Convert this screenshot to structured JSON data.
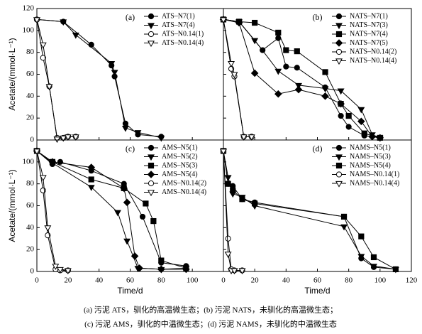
{
  "chart_data": [
    {
      "type": "line",
      "title": "(a)",
      "ylabel": "Acetate/(mmol·L⁻¹)",
      "xlim": [
        0,
        120
      ],
      "ylim": [
        0,
        120
      ],
      "yticks": [
        0,
        20,
        40,
        60,
        80,
        100,
        120
      ],
      "series": [
        {
          "name": "ATS–N7(1)",
          "marker": "circle",
          "color": "#000000",
          "x": [
            0,
            17,
            35,
            48,
            50,
            57,
            65,
            80
          ],
          "values": [
            110,
            108,
            87,
            68,
            58,
            15,
            5,
            3
          ]
        },
        {
          "name": "ATS–N7(4)",
          "marker": "triangle-down",
          "color": "#000000",
          "x": [
            0,
            17,
            25,
            48,
            50,
            57,
            65,
            80
          ],
          "values": [
            110,
            108,
            96,
            70,
            62,
            11,
            7,
            2
          ]
        },
        {
          "name": "ATS–N0.14(1)",
          "marker": "open-circle",
          "color": "#000000",
          "x": [
            0,
            4,
            8,
            13,
            17,
            20,
            25
          ],
          "values": [
            110,
            75,
            49,
            2,
            2,
            3,
            3
          ]
        },
        {
          "name": "ATS–N0.14(4)",
          "marker": "open-triangle-down",
          "color": "#000000",
          "x": [
            0,
            4,
            8,
            13,
            17,
            20,
            25
          ],
          "values": [
            110,
            87,
            49,
            1,
            2,
            3,
            3
          ]
        }
      ]
    },
    {
      "type": "line",
      "title": "(b)",
      "xlim": [
        0,
        120
      ],
      "ylim": [
        0,
        120
      ],
      "series": [
        {
          "name": "NATS–N7(1)",
          "marker": "circle",
          "color": "#000000",
          "x": [
            0,
            10,
            25,
            35,
            40,
            47,
            65,
            75,
            80,
            90,
            100
          ],
          "values": [
            110,
            108,
            82,
            93,
            67,
            66,
            48,
            22,
            12,
            4,
            2
          ]
        },
        {
          "name": "NATS–N7(3)",
          "marker": "triangle-down",
          "color": "#000000",
          "x": [
            0,
            10,
            20,
            35,
            48,
            65,
            75,
            88,
            95,
            100
          ],
          "values": [
            110,
            108,
            91,
            63,
            50,
            47,
            45,
            28,
            5,
            2
          ]
        },
        {
          "name": "NATS–N7(4)",
          "marker": "square",
          "color": "#000000",
          "x": [
            0,
            10,
            20,
            35,
            40,
            47,
            65,
            75,
            80,
            90,
            100
          ],
          "values": [
            110,
            108,
            107,
            98,
            82,
            81,
            62,
            33,
            22,
            6,
            2
          ]
        },
        {
          "name": "NATS–N7(5)",
          "marker": "diamond",
          "color": "#000000",
          "x": [
            0,
            10,
            20,
            35,
            48,
            65,
            75,
            88,
            95,
            100
          ],
          "values": [
            110,
            107,
            61,
            42,
            46,
            40,
            33,
            17,
            3,
            2
          ]
        },
        {
          "name": "NATS–N0.14(2)",
          "marker": "open-circle",
          "color": "#000000",
          "x": [
            0,
            5,
            7,
            13,
            18
          ],
          "values": [
            110,
            65,
            58,
            3,
            3
          ]
        },
        {
          "name": "NATS–N0.14(4)",
          "marker": "open-triangle-down",
          "color": "#000000",
          "x": [
            0,
            5,
            7,
            13,
            18
          ],
          "values": [
            110,
            70,
            60,
            3,
            3
          ]
        }
      ]
    },
    {
      "type": "line",
      "title": "(c)",
      "ylabel": "Acetate/(mmol·L⁻¹)",
      "xlabel": "Time/d",
      "xlim": [
        0,
        120
      ],
      "ylim": [
        0,
        120
      ],
      "yticks": [
        0,
        20,
        40,
        60,
        80,
        100
      ],
      "xticks": [
        0,
        20,
        40,
        60,
        80,
        100
      ],
      "series": [
        {
          "name": "AMS–N5(1)",
          "marker": "circle",
          "color": "#000000",
          "x": [
            0,
            10,
            15,
            35,
            56,
            68,
            80,
            96
          ],
          "values": [
            110,
            98,
            100,
            92,
            80,
            50,
            8,
            5
          ]
        },
        {
          "name": "AMS–N5(2)",
          "marker": "triangle-down",
          "color": "#000000",
          "x": [
            0,
            10,
            35,
            52,
            58,
            65,
            80,
            96
          ],
          "values": [
            110,
            99,
            77,
            54,
            28,
            3,
            2,
            3
          ]
        },
        {
          "name": "AMS–N5(3)",
          "marker": "square",
          "color": "#000000",
          "x": [
            0,
            10,
            35,
            56,
            70,
            75,
            80,
            96
          ],
          "values": [
            110,
            100,
            84,
            76,
            62,
            46,
            10,
            3
          ]
        },
        {
          "name": "AMS–N5(4)",
          "marker": "diamond",
          "color": "#000000",
          "x": [
            0,
            10,
            35,
            56,
            58,
            63,
            66,
            80,
            96
          ],
          "values": [
            110,
            100,
            95,
            76,
            63,
            14,
            3,
            2,
            2
          ]
        },
        {
          "name": "AMS–N0.14(2)",
          "marker": "open-circle",
          "color": "#000000",
          "x": [
            0,
            4,
            7,
            12,
            15,
            20
          ],
          "values": [
            110,
            74,
            33,
            2,
            1,
            1
          ]
        },
        {
          "name": "AMS–N0.14(4)",
          "marker": "open-triangle-down",
          "color": "#000000",
          "x": [
            0,
            4,
            7,
            12,
            15,
            20
          ],
          "values": [
            110,
            86,
            40,
            5,
            2,
            1
          ]
        }
      ]
    },
    {
      "type": "line",
      "title": "(d)",
      "xlabel": "Time/d",
      "xlim": [
        0,
        120
      ],
      "ylim": [
        0,
        120
      ],
      "xticks": [
        0,
        20,
        40,
        60,
        80,
        100,
        120
      ],
      "series": [
        {
          "name": "NAMS–N5(1)",
          "marker": "circle",
          "color": "#000000",
          "x": [
            0,
            3,
            6,
            12,
            20,
            77,
            88,
            96,
            110
          ],
          "values": [
            110,
            80,
            78,
            66,
            63,
            50,
            12,
            4,
            2
          ]
        },
        {
          "name": "NAMS–N5(3)",
          "marker": "triangle-down",
          "color": "#000000",
          "x": [
            0,
            3,
            6,
            12,
            20,
            77,
            88,
            96,
            110
          ],
          "values": [
            110,
            86,
            71,
            68,
            60,
            41,
            14,
            5,
            2
          ]
        },
        {
          "name": "NAMS–N5(4)",
          "marker": "square",
          "color": "#000000",
          "x": [
            0,
            3,
            6,
            12,
            20,
            77,
            88,
            96,
            110
          ],
          "values": [
            110,
            80,
            74,
            66,
            62,
            50,
            32,
            13,
            2
          ]
        },
        {
          "name": "NAMS–N0.14(1)",
          "marker": "open-circle",
          "color": "#000000",
          "x": [
            0,
            3,
            5,
            7,
            12
          ],
          "values": [
            110,
            30,
            2,
            1,
            1
          ]
        },
        {
          "name": "NAMS–N0.14(4)",
          "marker": "open-triangle-down",
          "color": "#000000",
          "x": [
            0,
            3,
            5,
            7,
            12
          ],
          "values": [
            110,
            16,
            1,
            1,
            1
          ]
        }
      ]
    }
  ],
  "caption": [
    "(a) 污泥 ATS，驯化的高温微生态；(b) 污泥 NATS，未驯化的高温微生态；",
    "(c) 污泥 AMS，驯化的中温微生态；(d) 污泥 NAMS，未驯化的中温微生态"
  ]
}
